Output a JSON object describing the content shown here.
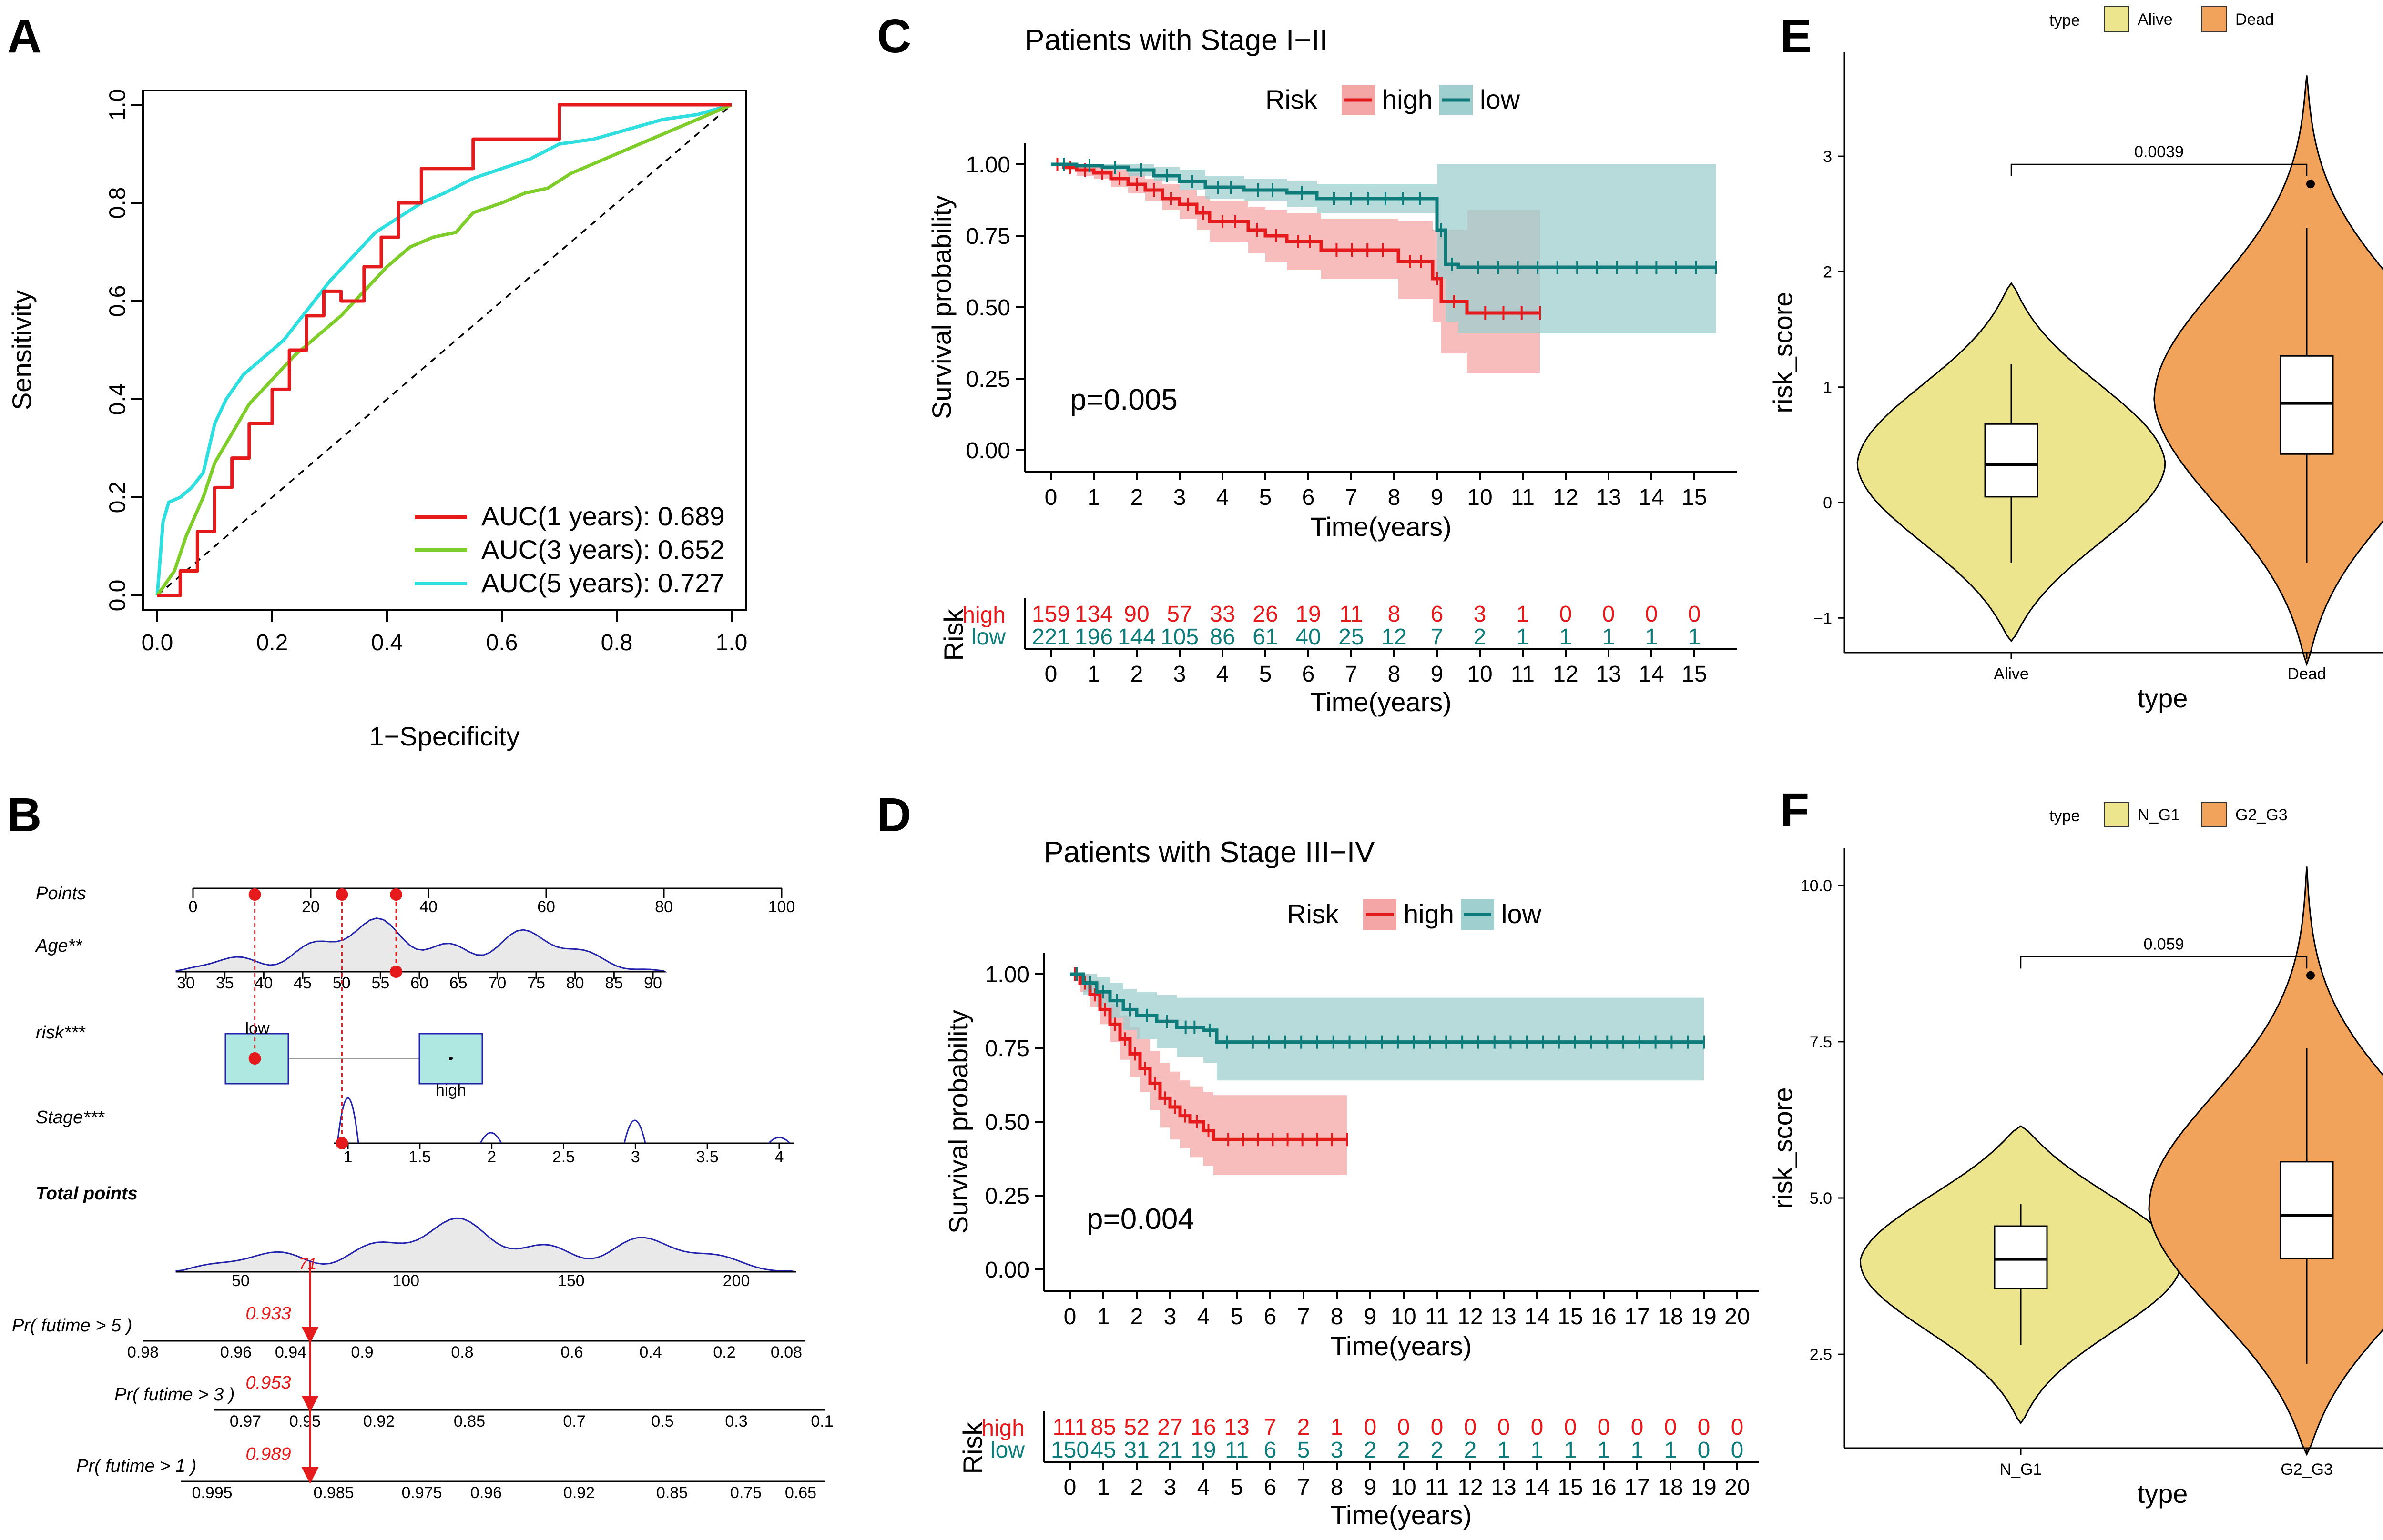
{
  "panels": {
    "A": {
      "label": "A",
      "xlabel": "1−Specificity",
      "ylabel": "Sensitivity"
    },
    "B": {
      "label": "B"
    },
    "C": {
      "label": "C"
    },
    "D": {
      "label": "D"
    },
    "E": {
      "label": "E"
    },
    "F": {
      "label": "F"
    }
  },
  "colors": {
    "red": "#e41a1c",
    "green": "#7fcd2a",
    "cyan": "#2fdede",
    "teal": "#0e7c7b",
    "highfill": "#f4a6a6",
    "lowfill": "#9fcfcf",
    "yellow": "#ece58d",
    "orange": "#f2a35b",
    "nomoblue": "#2222aa",
    "boxfill": "#aee8e0"
  },
  "chart_data": [
    {
      "id": "A",
      "type": "line",
      "title": "",
      "xlabel": "1−Specificity",
      "ylabel": "Sensitivity",
      "xlim": [
        0,
        1
      ],
      "ylim": [
        0,
        1
      ],
      "xticks": [
        "0.0",
        "0.2",
        "0.4",
        "0.6",
        "0.8",
        "1.0"
      ],
      "yticks": [
        "0.0",
        "0.2",
        "0.4",
        "0.6",
        "0.8",
        "1.0"
      ],
      "legend": "bottom-right",
      "series": [
        {
          "name": "AUC(1 years): 0.689",
          "color": "#e41a1c",
          "x": [
            0.0,
            0.04,
            0.04,
            0.07,
            0.07,
            0.1,
            0.1,
            0.13,
            0.13,
            0.16,
            0.16,
            0.2,
            0.2,
            0.23,
            0.23,
            0.26,
            0.26,
            0.29,
            0.29,
            0.32,
            0.32,
            0.36,
            0.36,
            0.39,
            0.39,
            0.42,
            0.42,
            0.46,
            0.46,
            0.55,
            0.55,
            0.7,
            0.7,
            1.0
          ],
          "y": [
            0.0,
            0.0,
            0.05,
            0.05,
            0.13,
            0.13,
            0.22,
            0.22,
            0.28,
            0.28,
            0.35,
            0.35,
            0.42,
            0.42,
            0.5,
            0.5,
            0.57,
            0.57,
            0.62,
            0.62,
            0.6,
            0.6,
            0.67,
            0.67,
            0.73,
            0.73,
            0.8,
            0.8,
            0.87,
            0.87,
            0.93,
            0.93,
            1.0,
            1.0
          ]
        },
        {
          "name": "AUC(3 years): 0.652",
          "color": "#7fcd2a",
          "x": [
            0.0,
            0.03,
            0.05,
            0.08,
            0.1,
            0.13,
            0.16,
            0.2,
            0.24,
            0.28,
            0.32,
            0.36,
            0.4,
            0.44,
            0.48,
            0.52,
            0.55,
            0.6,
            0.64,
            0.68,
            0.72,
            0.78,
            0.84,
            0.9,
            0.96,
            1.0
          ],
          "y": [
            0.0,
            0.05,
            0.12,
            0.2,
            0.27,
            0.33,
            0.39,
            0.44,
            0.49,
            0.53,
            0.57,
            0.62,
            0.67,
            0.71,
            0.73,
            0.74,
            0.78,
            0.8,
            0.82,
            0.83,
            0.86,
            0.89,
            0.92,
            0.95,
            0.98,
            1.0
          ]
        },
        {
          "name": "AUC(5 years): 0.727",
          "color": "#2fdede",
          "x": [
            0.0,
            0.01,
            0.02,
            0.04,
            0.06,
            0.08,
            0.1,
            0.12,
            0.15,
            0.18,
            0.22,
            0.26,
            0.3,
            0.34,
            0.38,
            0.42,
            0.46,
            0.5,
            0.55,
            0.6,
            0.65,
            0.7,
            0.76,
            0.82,
            0.88,
            0.94,
            1.0
          ],
          "y": [
            0.0,
            0.15,
            0.19,
            0.2,
            0.22,
            0.25,
            0.35,
            0.4,
            0.45,
            0.48,
            0.52,
            0.58,
            0.64,
            0.69,
            0.74,
            0.77,
            0.8,
            0.82,
            0.85,
            0.87,
            0.89,
            0.92,
            0.93,
            0.95,
            0.97,
            0.98,
            1.0
          ]
        }
      ]
    },
    {
      "id": "B",
      "type": "nomogram",
      "rows": [
        {
          "label": "Points",
          "ticks": [
            "0",
            "20",
            "40",
            "60",
            "80",
            "100"
          ],
          "values": [
            0,
            20,
            40,
            60,
            80,
            100
          ]
        },
        {
          "label": "Age**",
          "ticks": [
            "30",
            "35",
            "40",
            "45",
            "50",
            "55",
            "60",
            "65",
            "70",
            "75",
            "80",
            "85",
            "90"
          ]
        },
        {
          "label": "risk***",
          "categories": [
            "low",
            "high"
          ]
        },
        {
          "label": "Stage***",
          "ticks": [
            "1",
            "1.5",
            "2",
            "2.5",
            "3",
            "3.5",
            "4"
          ]
        },
        {
          "label": "Total points",
          "ticks": [
            "50",
            "100",
            "150",
            "200"
          ],
          "marker": "71"
        },
        {
          "label": "Pr( futime > 5 )",
          "ticks": [
            "0.98",
            "0.96",
            "0.94",
            "0.9",
            "0.8",
            "0.6",
            "0.4",
            "0.2",
            "0.08"
          ],
          "marker": "0.933"
        },
        {
          "label": "Pr( futime > 3 )",
          "ticks": [
            "0.97",
            "0.95",
            "0.92",
            "0.85",
            "0.7",
            "0.5",
            "0.3",
            "0.1"
          ],
          "marker": "0.953"
        },
        {
          "label": "Pr( futime > 1 )",
          "ticks": [
            "0.995",
            "0.985",
            "0.975",
            "0.96",
            "0.92",
            "0.85",
            "0.75",
            "0.65"
          ],
          "marker": "0.989"
        }
      ],
      "selected_points": [
        10.5,
        25.3,
        34.5
      ]
    },
    {
      "id": "C",
      "type": "line",
      "title": "Patients with Stage I−II",
      "xlabel": "Time(years)",
      "ylabel": "Survival probability",
      "legend_title": "Risk",
      "legend": "top",
      "xlim": [
        0,
        15.5
      ],
      "ylim": [
        0,
        1
      ],
      "xticks": [
        "0",
        "1",
        "2",
        "3",
        "4",
        "5",
        "6",
        "7",
        "8",
        "9",
        "10",
        "11",
        "12",
        "13",
        "14",
        "15"
      ],
      "yticks": [
        "0.00",
        "0.25",
        "0.50",
        "0.75",
        "1.00"
      ],
      "pvalue": "p=0.005",
      "risk_table_label": "Risk",
      "series": [
        {
          "name": "high",
          "color": "#e41a1c",
          "x": [
            0,
            0.3,
            0.6,
            1.0,
            1.4,
            1.8,
            2.2,
            2.6,
            3.0,
            3.4,
            3.7,
            4.6,
            5.0,
            5.5,
            6.3,
            8.1,
            8.9,
            9.1,
            9.7,
            11.4
          ],
          "y": [
            1.0,
            0.99,
            0.98,
            0.97,
            0.95,
            0.93,
            0.91,
            0.88,
            0.86,
            0.83,
            0.8,
            0.77,
            0.75,
            0.73,
            0.7,
            0.66,
            0.6,
            0.52,
            0.48,
            0.48
          ],
          "ci_lower": [
            1.0,
            0.98,
            0.96,
            0.95,
            0.92,
            0.9,
            0.87,
            0.84,
            0.81,
            0.77,
            0.73,
            0.69,
            0.66,
            0.63,
            0.6,
            0.53,
            0.45,
            0.34,
            0.27,
            0.27
          ],
          "ci_upper": [
            1.0,
            1.0,
            1.0,
            0.99,
            0.98,
            0.97,
            0.95,
            0.93,
            0.91,
            0.89,
            0.87,
            0.85,
            0.84,
            0.83,
            0.81,
            0.8,
            0.77,
            0.77,
            0.84,
            0.84
          ]
        },
        {
          "name": "low",
          "color": "#0e7c7b",
          "x": [
            0,
            0.6,
            1.2,
            1.8,
            2.4,
            3.0,
            3.6,
            4.5,
            5.5,
            6.2,
            9.0,
            9.2,
            9.5,
            15.5
          ],
          "y": [
            1.0,
            0.995,
            0.99,
            0.98,
            0.96,
            0.94,
            0.92,
            0.91,
            0.9,
            0.88,
            0.77,
            0.65,
            0.64,
            0.64
          ],
          "ci_lower": [
            1.0,
            0.99,
            0.98,
            0.96,
            0.94,
            0.91,
            0.88,
            0.87,
            0.85,
            0.83,
            0.6,
            0.45,
            0.41,
            0.41
          ],
          "ci_upper": [
            1.0,
            1.0,
            1.0,
            1.0,
            0.99,
            0.98,
            0.96,
            0.95,
            0.94,
            0.93,
            1.0,
            1.0,
            1.0,
            1.0
          ]
        }
      ],
      "risk_table": {
        "times": [
          0,
          1,
          2,
          3,
          4,
          5,
          6,
          7,
          8,
          9,
          10,
          11,
          12,
          13,
          14,
          15
        ],
        "high": [
          "159",
          "134",
          "90",
          "57",
          "33",
          "26",
          "19",
          "11",
          "8",
          "6",
          "3",
          "1",
          "0",
          "0",
          "0",
          "0"
        ],
        "low": [
          "221",
          "196",
          "144",
          "105",
          "86",
          "61",
          "40",
          "25",
          "12",
          "7",
          "2",
          "1",
          "1",
          "1",
          "1",
          "1"
        ]
      }
    },
    {
      "id": "D",
      "type": "line",
      "title": "Patients with Stage III−IV",
      "xlabel": "Time(years)",
      "ylabel": "Survival probability",
      "legend_title": "Risk",
      "legend": "top",
      "xlim": [
        0,
        20
      ],
      "ylim": [
        0,
        1
      ],
      "xticks": [
        "0",
        "1",
        "2",
        "3",
        "4",
        "5",
        "6",
        "7",
        "8",
        "9",
        "10",
        "11",
        "12",
        "13",
        "14",
        "15",
        "16",
        "17",
        "18",
        "19",
        "20"
      ],
      "yticks": [
        "0.00",
        "0.25",
        "0.50",
        "0.75",
        "1.00"
      ],
      "pvalue": "p=0.004",
      "risk_table_label": "Risk",
      "series": [
        {
          "name": "high",
          "color": "#e41a1c",
          "x": [
            0,
            0.3,
            0.6,
            0.9,
            1.2,
            1.5,
            1.8,
            2.1,
            2.4,
            2.7,
            3.0,
            3.3,
            3.6,
            4.0,
            4.3,
            8.3
          ],
          "y": [
            1.0,
            0.97,
            0.93,
            0.88,
            0.83,
            0.78,
            0.73,
            0.68,
            0.63,
            0.58,
            0.55,
            0.52,
            0.5,
            0.47,
            0.44,
            0.44
          ],
          "ci_lower": [
            1.0,
            0.94,
            0.89,
            0.83,
            0.77,
            0.71,
            0.65,
            0.6,
            0.54,
            0.48,
            0.44,
            0.41,
            0.38,
            0.35,
            0.32,
            0.32
          ],
          "ci_upper": [
            1.0,
            1.0,
            0.98,
            0.94,
            0.9,
            0.86,
            0.82,
            0.78,
            0.74,
            0.7,
            0.67,
            0.64,
            0.62,
            0.6,
            0.59,
            0.59
          ]
        },
        {
          "name": "low",
          "color": "#0e7c7b",
          "x": [
            0,
            0.4,
            0.8,
            1.2,
            1.6,
            2.0,
            2.6,
            3.2,
            4.0,
            4.4,
            5.0,
            19.0
          ],
          "y": [
            1.0,
            0.97,
            0.94,
            0.91,
            0.88,
            0.86,
            0.84,
            0.82,
            0.81,
            0.77,
            0.77,
            0.77
          ],
          "ci_lower": [
            1.0,
            0.93,
            0.89,
            0.85,
            0.81,
            0.78,
            0.75,
            0.72,
            0.7,
            0.64,
            0.64,
            0.64
          ],
          "ci_upper": [
            1.0,
            1.0,
            0.99,
            0.97,
            0.95,
            0.94,
            0.93,
            0.92,
            0.92,
            0.92,
            0.92,
            0.92
          ]
        }
      ],
      "risk_table": {
        "times": [
          0,
          1,
          2,
          3,
          4,
          5,
          6,
          7,
          8,
          9,
          10,
          11,
          12,
          13,
          14,
          15,
          16,
          17,
          18,
          19,
          20
        ],
        "high": [
          "111",
          "85",
          "52",
          "27",
          "16",
          "13",
          "7",
          "2",
          "1",
          "0",
          "0",
          "0",
          "0",
          "0",
          "0",
          "0",
          "0",
          "0",
          "0",
          "0",
          "0"
        ],
        "low": [
          "150",
          "45",
          "31",
          "21",
          "19",
          "11",
          "6",
          "5",
          "3",
          "2",
          "2",
          "2",
          "2",
          "1",
          "1",
          "1",
          "1",
          "1",
          "1",
          "0",
          "0"
        ]
      }
    },
    {
      "id": "E",
      "type": "violin",
      "xlabel": "type",
      "ylabel": "risk_score",
      "legend_title": "type",
      "legend": "top",
      "categories": [
        "Alive",
        "Dead"
      ],
      "ylim": [
        -1.3,
        3.9
      ],
      "yticks": [
        "−1",
        "0",
        "1",
        "2",
        "3"
      ],
      "ytick_values": [
        -1,
        0,
        1,
        2,
        3
      ],
      "boxes": [
        {
          "category": "Alive",
          "median": 0.33,
          "q1": 0.05,
          "q3": 0.68,
          "whisker_low": -0.52,
          "whisker_high": 1.2,
          "outliers": [],
          "min": -1.2,
          "max": 1.9
        },
        {
          "category": "Dead",
          "median": 0.86,
          "q1": 0.42,
          "q3": 1.27,
          "whisker_low": -0.52,
          "whisker_high": 2.38,
          "outliers": [
            2.76
          ],
          "min": -1.4,
          "max": 3.7
        }
      ],
      "comparison": {
        "label": "0.0039",
        "y": 2.93
      }
    },
    {
      "id": "F",
      "type": "violin",
      "xlabel": "type",
      "ylabel": "risk_score",
      "legend_title": "type",
      "legend": "top",
      "categories": [
        "N_G1",
        "G2_G3"
      ],
      "ylim": [
        1.0,
        10.6
      ],
      "yticks": [
        "2.5",
        "5.0",
        "7.5",
        "10.0"
      ],
      "ytick_values": [
        2.5,
        5.0,
        7.5,
        10.0
      ],
      "boxes": [
        {
          "category": "N_G1",
          "median": 4.02,
          "q1": 3.55,
          "q3": 4.55,
          "whisker_low": 2.65,
          "whisker_high": 4.9,
          "outliers": [],
          "min": 1.4,
          "max": 6.15
        },
        {
          "category": "G2_G3",
          "median": 4.72,
          "q1": 4.03,
          "q3": 5.58,
          "whisker_low": 2.35,
          "whisker_high": 7.4,
          "outliers": [
            8.56
          ],
          "min": 0.9,
          "max": 10.3
        }
      ],
      "comparison": {
        "label": "0.059",
        "y": 8.86
      }
    }
  ]
}
